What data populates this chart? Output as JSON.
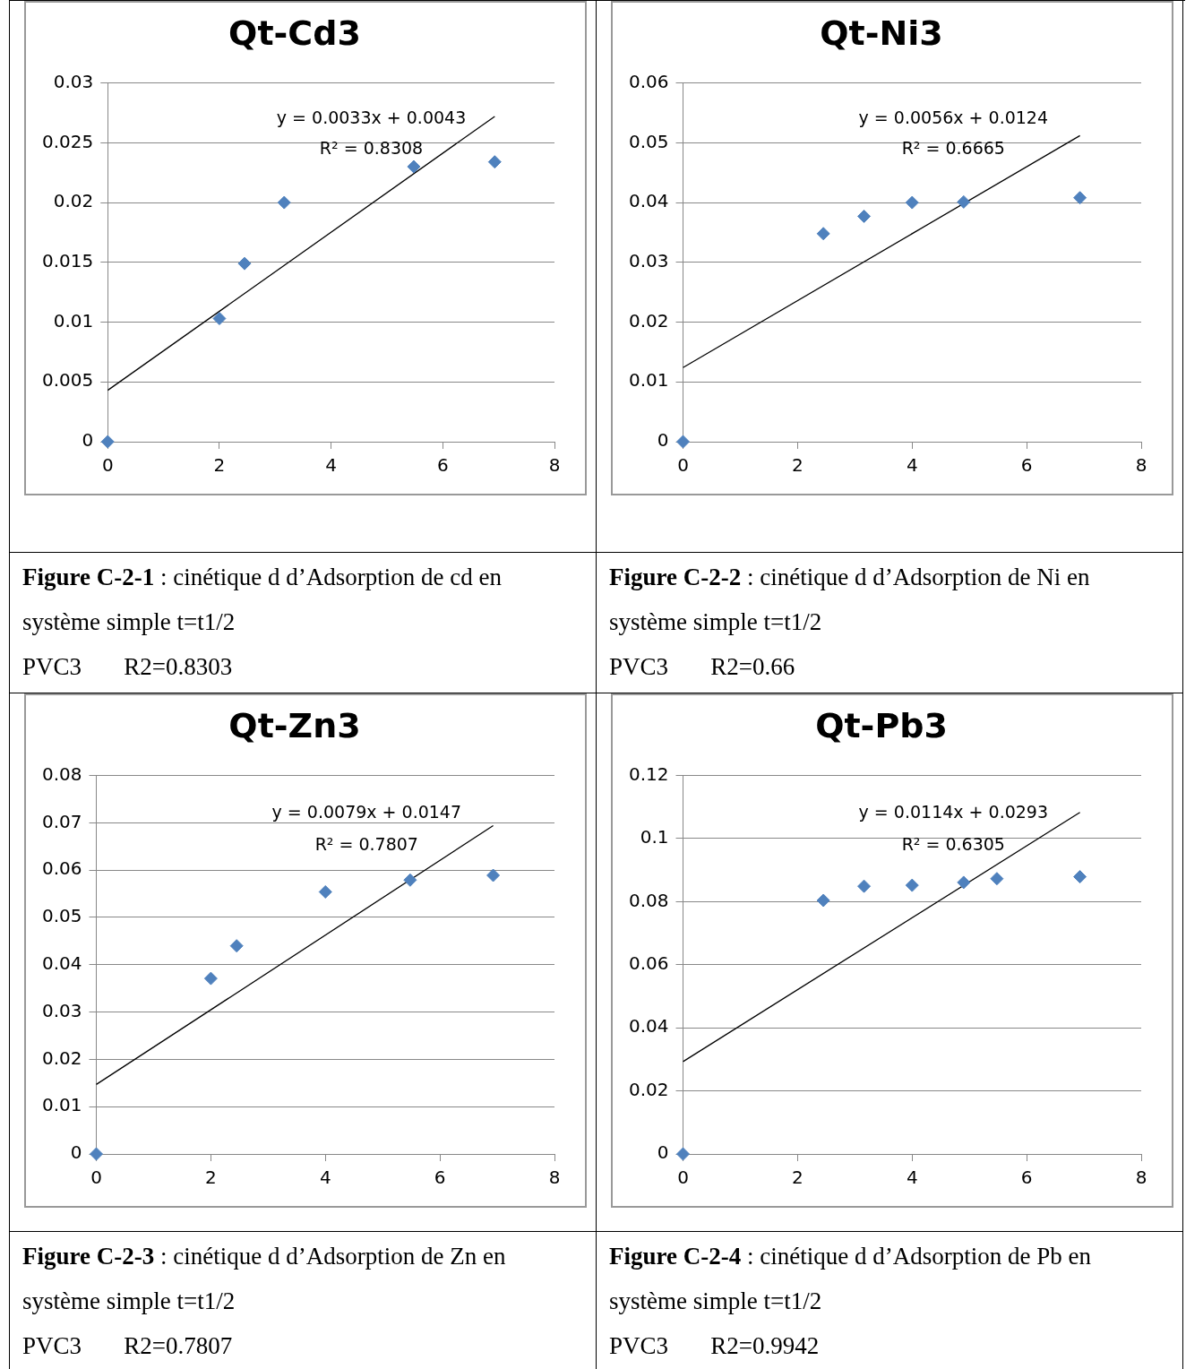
{
  "chart_data": [
    {
      "type": "scatter",
      "title": "Qt-Cd3",
      "xlim": [
        0,
        8
      ],
      "xticks": [
        0,
        2,
        4,
        6,
        8
      ],
      "ylim": [
        0,
        0.03
      ],
      "yticks": [
        0,
        0.005,
        0.01,
        0.015,
        0.02,
        0.025,
        0.03
      ],
      "grid": "y",
      "legend": false,
      "series": [
        {
          "color": "#4f81bd",
          "marker": "diamond",
          "x": [
            0,
            2,
            2.45,
            3.16,
            5.48,
            6.93
          ],
          "values": [
            0,
            0.0103,
            0.0149,
            0.02,
            0.023,
            0.0234
          ]
        },
        {
          "type": "line",
          "marker": "none",
          "color": "#000000",
          "x": [
            0,
            6.93
          ],
          "values": [
            0.0043,
            0.0272
          ]
        }
      ],
      "annotations": [
        "y = 0.0033x + 0.0043",
        "R² = 0.8308",
        "Figure C-2-1 : cinétique d d’Adsorption de cd en système simple t=t1/2",
        "PVC3       R2=0.8303"
      ]
    },
    {
      "type": "scatter",
      "title": "Qt-Ni3",
      "xlim": [
        0,
        8
      ],
      "xticks": [
        0,
        2,
        4,
        6,
        8
      ],
      "ylim": [
        0,
        0.06
      ],
      "yticks": [
        0,
        0.01,
        0.02,
        0.03,
        0.04,
        0.05,
        0.06
      ],
      "grid": "y",
      "legend": false,
      "series": [
        {
          "color": "#4f81bd",
          "marker": "diamond",
          "x": [
            0,
            2.45,
            3.16,
            4,
            4.9,
            6.93
          ],
          "values": [
            0,
            0.0348,
            0.0377,
            0.04,
            0.0401,
            0.0408
          ]
        },
        {
          "type": "line",
          "marker": "none",
          "color": "#000000",
          "x": [
            0,
            6.93
          ],
          "values": [
            0.0124,
            0.0512
          ]
        }
      ],
      "annotations": [
        "y = 0.0056x + 0.0124",
        "R² = 0.6665",
        "Figure C-2-2 : cinétique d d’Adsorption de Ni en système simple t=t1/2",
        "PVC3       R2=0.66"
      ]
    },
    {
      "type": "scatter",
      "title": "Qt-Zn3",
      "xlim": [
        0,
        8
      ],
      "xticks": [
        0,
        2,
        4,
        6,
        8
      ],
      "ylim": [
        0,
        0.08
      ],
      "yticks": [
        0,
        0.01,
        0.02,
        0.03,
        0.04,
        0.05,
        0.06,
        0.07,
        0.08
      ],
      "grid": "y",
      "legend": false,
      "series": [
        {
          "color": "#4f81bd",
          "marker": "diamond",
          "x": [
            0,
            2,
            2.45,
            4,
            5.48,
            6.93
          ],
          "values": [
            0,
            0.0371,
            0.044,
            0.0554,
            0.0579,
            0.0589
          ]
        },
        {
          "type": "line",
          "marker": "none",
          "color": "#000000",
          "x": [
            0,
            6.93
          ],
          "values": [
            0.0147,
            0.0694
          ]
        }
      ],
      "annotations": [
        "y = 0.0079x + 0.0147",
        "R² = 0.7807",
        "Figure C-2-3 : cinétique d d’Adsorption de Zn en système simple t=t1/2",
        "PVC3       R2=0.7807"
      ]
    },
    {
      "type": "scatter",
      "title": "Qt-Pb3",
      "xlim": [
        0,
        8
      ],
      "xticks": [
        0,
        2,
        4,
        6,
        8
      ],
      "ylim": [
        0,
        0.12
      ],
      "yticks": [
        0,
        0.02,
        0.04,
        0.06,
        0.08,
        0.1,
        0.12
      ],
      "grid": "y",
      "legend": false,
      "series": [
        {
          "color": "#4f81bd",
          "marker": "diamond",
          "x": [
            0,
            2.45,
            3.16,
            4,
            4.9,
            5.48,
            6.93
          ],
          "values": [
            0,
            0.0804,
            0.0849,
            0.0852,
            0.0861,
            0.0873,
            0.0879
          ]
        },
        {
          "type": "line",
          "marker": "none",
          "color": "#000000",
          "x": [
            0,
            6.93
          ],
          "values": [
            0.0293,
            0.1083
          ]
        }
      ],
      "annotations": [
        "y = 0.0114x + 0.0293",
        "R² = 0.6305",
        "Figure C-2-4 : cinétique d d’Adsorption de Pb en système simple t=t1/2",
        "PVC3       R2=0.9942"
      ]
    }
  ]
}
